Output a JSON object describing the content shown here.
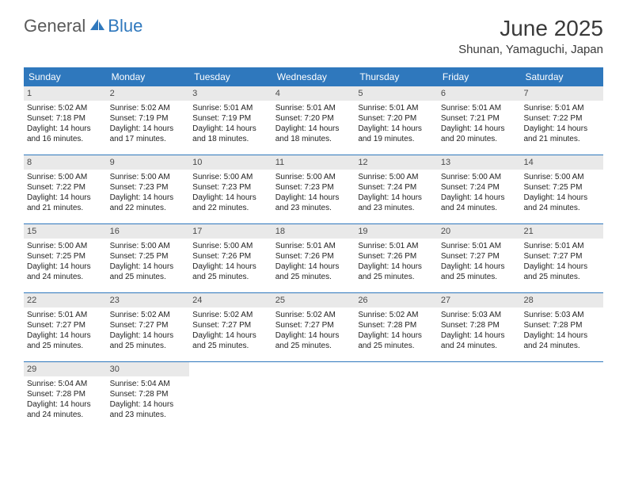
{
  "brand": {
    "general": "General",
    "blue": "Blue"
  },
  "title": "June 2025",
  "location": "Shunan, Yamaguchi, Japan",
  "colors": {
    "header_bg": "#2f78bd",
    "header_text": "#ffffff",
    "daynum_bg": "#e9e9e9",
    "daynum_text": "#4a4a4a",
    "body_text": "#232323",
    "rule": "#2f78bd",
    "logo_gray": "#5a5a5a",
    "logo_blue": "#2f78bd"
  },
  "typography": {
    "title_fontsize": 28,
    "location_fontsize": 15,
    "dayhead_fontsize": 12,
    "daynum_fontsize": 11,
    "cell_fontsize": 10
  },
  "day_names": [
    "Sunday",
    "Monday",
    "Tuesday",
    "Wednesday",
    "Thursday",
    "Friday",
    "Saturday"
  ],
  "weeks": [
    [
      {
        "n": "1",
        "sr": "5:02 AM",
        "ss": "7:18 PM",
        "dl": "14 hours and 16 minutes."
      },
      {
        "n": "2",
        "sr": "5:02 AM",
        "ss": "7:19 PM",
        "dl": "14 hours and 17 minutes."
      },
      {
        "n": "3",
        "sr": "5:01 AM",
        "ss": "7:19 PM",
        "dl": "14 hours and 18 minutes."
      },
      {
        "n": "4",
        "sr": "5:01 AM",
        "ss": "7:20 PM",
        "dl": "14 hours and 18 minutes."
      },
      {
        "n": "5",
        "sr": "5:01 AM",
        "ss": "7:20 PM",
        "dl": "14 hours and 19 minutes."
      },
      {
        "n": "6",
        "sr": "5:01 AM",
        "ss": "7:21 PM",
        "dl": "14 hours and 20 minutes."
      },
      {
        "n": "7",
        "sr": "5:01 AM",
        "ss": "7:22 PM",
        "dl": "14 hours and 21 minutes."
      }
    ],
    [
      {
        "n": "8",
        "sr": "5:00 AM",
        "ss": "7:22 PM",
        "dl": "14 hours and 21 minutes."
      },
      {
        "n": "9",
        "sr": "5:00 AM",
        "ss": "7:23 PM",
        "dl": "14 hours and 22 minutes."
      },
      {
        "n": "10",
        "sr": "5:00 AM",
        "ss": "7:23 PM",
        "dl": "14 hours and 22 minutes."
      },
      {
        "n": "11",
        "sr": "5:00 AM",
        "ss": "7:23 PM",
        "dl": "14 hours and 23 minutes."
      },
      {
        "n": "12",
        "sr": "5:00 AM",
        "ss": "7:24 PM",
        "dl": "14 hours and 23 minutes."
      },
      {
        "n": "13",
        "sr": "5:00 AM",
        "ss": "7:24 PM",
        "dl": "14 hours and 24 minutes."
      },
      {
        "n": "14",
        "sr": "5:00 AM",
        "ss": "7:25 PM",
        "dl": "14 hours and 24 minutes."
      }
    ],
    [
      {
        "n": "15",
        "sr": "5:00 AM",
        "ss": "7:25 PM",
        "dl": "14 hours and 24 minutes."
      },
      {
        "n": "16",
        "sr": "5:00 AM",
        "ss": "7:25 PM",
        "dl": "14 hours and 25 minutes."
      },
      {
        "n": "17",
        "sr": "5:00 AM",
        "ss": "7:26 PM",
        "dl": "14 hours and 25 minutes."
      },
      {
        "n": "18",
        "sr": "5:01 AM",
        "ss": "7:26 PM",
        "dl": "14 hours and 25 minutes."
      },
      {
        "n": "19",
        "sr": "5:01 AM",
        "ss": "7:26 PM",
        "dl": "14 hours and 25 minutes."
      },
      {
        "n": "20",
        "sr": "5:01 AM",
        "ss": "7:27 PM",
        "dl": "14 hours and 25 minutes."
      },
      {
        "n": "21",
        "sr": "5:01 AM",
        "ss": "7:27 PM",
        "dl": "14 hours and 25 minutes."
      }
    ],
    [
      {
        "n": "22",
        "sr": "5:01 AM",
        "ss": "7:27 PM",
        "dl": "14 hours and 25 minutes."
      },
      {
        "n": "23",
        "sr": "5:02 AM",
        "ss": "7:27 PM",
        "dl": "14 hours and 25 minutes."
      },
      {
        "n": "24",
        "sr": "5:02 AM",
        "ss": "7:27 PM",
        "dl": "14 hours and 25 minutes."
      },
      {
        "n": "25",
        "sr": "5:02 AM",
        "ss": "7:27 PM",
        "dl": "14 hours and 25 minutes."
      },
      {
        "n": "26",
        "sr": "5:02 AM",
        "ss": "7:28 PM",
        "dl": "14 hours and 25 minutes."
      },
      {
        "n": "27",
        "sr": "5:03 AM",
        "ss": "7:28 PM",
        "dl": "14 hours and 24 minutes."
      },
      {
        "n": "28",
        "sr": "5:03 AM",
        "ss": "7:28 PM",
        "dl": "14 hours and 24 minutes."
      }
    ],
    [
      {
        "n": "29",
        "sr": "5:04 AM",
        "ss": "7:28 PM",
        "dl": "14 hours and 24 minutes."
      },
      {
        "n": "30",
        "sr": "5:04 AM",
        "ss": "7:28 PM",
        "dl": "14 hours and 23 minutes."
      },
      null,
      null,
      null,
      null,
      null
    ]
  ],
  "labels": {
    "sunrise_prefix": "Sunrise: ",
    "sunset_prefix": "Sunset: ",
    "daylight_prefix": "Daylight: "
  }
}
